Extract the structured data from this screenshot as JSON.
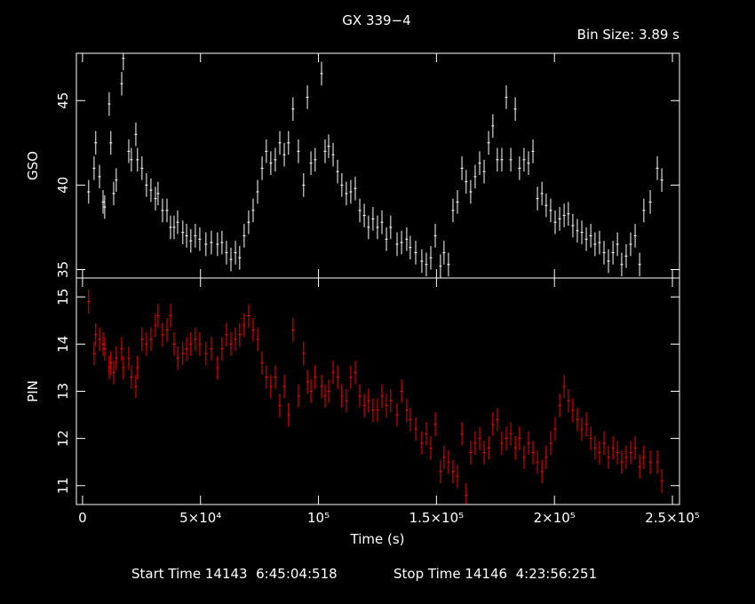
{
  "chart_data": [
    {
      "type": "errorbar",
      "title": "GX 339−4",
      "annotation": "Bin Size: 3.89 s",
      "ylabel": "GSO",
      "xlim": [
        -2600,
        253000
      ],
      "ylim": [
        34.5,
        47.8
      ],
      "yticks": [
        35,
        40,
        45
      ],
      "series": [
        {
          "name": "GSO",
          "color": "#ffffff",
          "yerr": 0.7,
          "x": [
            2600,
            4900,
            5600,
            7200,
            8700,
            9400,
            11300,
            12000,
            13200,
            14300,
            16600,
            17300,
            19600,
            20700,
            22600,
            23300,
            25200,
            27100,
            29000,
            30900,
            32000,
            33900,
            35800,
            37300,
            38800,
            40300,
            42500,
            44100,
            45900,
            47800,
            49700,
            52300,
            54600,
            57200,
            59100,
            61000,
            62900,
            64800,
            66600,
            68500,
            70400,
            72300,
            74200,
            76100,
            77900,
            79800,
            81700,
            83600,
            85500,
            87300,
            89200,
            91500,
            93700,
            95300,
            96800,
            98600,
            101300,
            102800,
            104300,
            106200,
            108100,
            109900,
            111800,
            113700,
            115600,
            117500,
            119400,
            121200,
            123100,
            125000,
            126900,
            128800,
            130600,
            133300,
            135200,
            137400,
            138900,
            141200,
            143800,
            145700,
            147600,
            149500,
            151700,
            153200,
            155100,
            157000,
            158900,
            160800,
            162600,
            164500,
            166400,
            168300,
            170200,
            172100,
            173900,
            175800,
            177700,
            179600,
            181500,
            183400,
            185200,
            187100,
            189000,
            190900,
            192800,
            194700,
            196500,
            198400,
            200300,
            202200,
            204100,
            205900,
            207800,
            209700,
            211600,
            213500,
            215400,
            217200,
            219100,
            221000,
            222900,
            224800,
            226700,
            228500,
            230400,
            232300,
            234200,
            236100,
            237900,
            240600,
            243600,
            245500
          ],
          "values": [
            39.6,
            41,
            42.5,
            40.5,
            39,
            38.7,
            44.8,
            42.5,
            39.5,
            40.3,
            46,
            47.5,
            42,
            41.5,
            43,
            41.5,
            41,
            40,
            39.7,
            39.2,
            39.5,
            38.5,
            38.5,
            37.5,
            37.5,
            37.8,
            37.2,
            37,
            36.7,
            37,
            36.8,
            36.5,
            36.6,
            36.5,
            36.6,
            36,
            35.6,
            36,
            35.7,
            37,
            37.8,
            38.5,
            39.6,
            41,
            42,
            41.3,
            41.5,
            42.5,
            41.8,
            42.5,
            44.5,
            42,
            40,
            45.2,
            41.3,
            41.5,
            46.6,
            42,
            42.3,
            41.8,
            40.8,
            40,
            39.5,
            39.6,
            39.8,
            38.5,
            38.2,
            37.5,
            38,
            37.5,
            37.8,
            36.8,
            37.5,
            36.5,
            36.6,
            36.8,
            36.3,
            36,
            35.5,
            35.3,
            35.7,
            37,
            35.2,
            36,
            35.3,
            38.5,
            39,
            41,
            40.2,
            39.6,
            40.5,
            41.3,
            40.8,
            42.5,
            43.5,
            41.5,
            41.5,
            45.2,
            41.5,
            44.5,
            41,
            41.5,
            41.3,
            42,
            39.2,
            39.5,
            38.8,
            38.5,
            37.8,
            38,
            38.2,
            38.3,
            37.6,
            37.3,
            37.2,
            36.8,
            37,
            36.5,
            36.6,
            36,
            35.5,
            36,
            36.5,
            35.3,
            35.8,
            36.5,
            37,
            35.3,
            38.5,
            39,
            41,
            40.3
          ]
        }
      ]
    },
    {
      "type": "errorbar",
      "ylabel": "PIN",
      "xlabel": "Time (s)",
      "notes": [
        "Start Time 14143  6:45:04:518",
        "Stop Time 14146  4:23:56:251"
      ],
      "xlim": [
        -2600,
        253000
      ],
      "ylim": [
        10.6,
        15.4
      ],
      "yticks": [
        11,
        12,
        13,
        14,
        15
      ],
      "xticks": [
        0,
        {
          "value": 50000,
          "label": "5×10⁴"
        },
        {
          "value": 100000,
          "label": "10⁵"
        },
        {
          "value": 150000,
          "label": "1.5×10⁵"
        },
        {
          "value": 200000,
          "label": "2×10⁵"
        },
        {
          "value": 250000,
          "label": "2.5×10⁵"
        }
      ],
      "series": [
        {
          "name": "PIN",
          "color": "#ff0000",
          "yerr": 0.25,
          "x": [
            2600,
            4900,
            5600,
            7200,
            8700,
            9400,
            11300,
            12000,
            13200,
            14300,
            16600,
            17300,
            19600,
            20700,
            22600,
            23300,
            25200,
            27100,
            29000,
            30900,
            32000,
            33900,
            35800,
            37300,
            38800,
            40300,
            42500,
            44100,
            45900,
            47800,
            49700,
            52300,
            54600,
            57200,
            59100,
            61000,
            62900,
            64800,
            66600,
            68500,
            70400,
            72300,
            74200,
            76100,
            77900,
            79800,
            81700,
            83600,
            85500,
            87300,
            89200,
            91500,
            93700,
            95300,
            96800,
            98600,
            101300,
            102800,
            104300,
            106200,
            108100,
            109900,
            111800,
            113700,
            115600,
            117500,
            119400,
            121200,
            123100,
            125000,
            126900,
            128800,
            130600,
            133300,
            135200,
            137400,
            138900,
            141200,
            143800,
            145700,
            147600,
            149500,
            151700,
            153200,
            155100,
            157000,
            158900,
            160800,
            162600,
            164500,
            166400,
            168300,
            170200,
            172100,
            173900,
            175800,
            177700,
            179600,
            181500,
            183400,
            185200,
            187100,
            189000,
            190900,
            192800,
            194700,
            196500,
            198400,
            200300,
            202200,
            204100,
            205900,
            207800,
            209700,
            211600,
            213500,
            215400,
            217200,
            219100,
            221000,
            222900,
            224800,
            226700,
            228500,
            230400,
            232300,
            234200,
            236100,
            237900,
            240600,
            243600,
            245500
          ],
          "values": [
            14.9,
            13.8,
            14.2,
            14.1,
            14,
            13.9,
            13.5,
            13.6,
            13.4,
            13.7,
            13.9,
            13.5,
            13.7,
            13.3,
            13.1,
            13.5,
            14.1,
            14,
            14.1,
            14.4,
            14.6,
            14.2,
            14.3,
            14.6,
            14,
            13.7,
            13.8,
            13.9,
            14,
            14.1,
            14,
            13.8,
            13.9,
            13.5,
            13.9,
            14.2,
            14,
            14.1,
            14.2,
            14.4,
            14.6,
            14.3,
            14.1,
            13.6,
            13.3,
            13.1,
            13.3,
            12.7,
            13.1,
            12.5,
            14.3,
            12.9,
            13.8,
            13.2,
            13,
            13.3,
            13.1,
            12.9,
            13,
            13.4,
            13.3,
            12.9,
            12.8,
            13.3,
            13.4,
            12.9,
            12.7,
            12.8,
            12.6,
            12.6,
            12.9,
            12.7,
            12.8,
            12.5,
            13,
            12.6,
            12.4,
            12.2,
            11.9,
            12.1,
            11.8,
            12.3,
            11.3,
            11.6,
            11.5,
            11.3,
            11.2,
            12.1,
            10.8,
            11.7,
            11.9,
            12,
            11.7,
            11.8,
            12.3,
            12.4,
            11.9,
            12,
            12.1,
            11.8,
            12,
            11.6,
            11.9,
            11.7,
            11.5,
            11.3,
            11.6,
            11.9,
            12.2,
            12.7,
            13.1,
            12.8,
            12.6,
            12.4,
            12.2,
            12.3,
            12,
            11.8,
            11.7,
            11.9,
            11.6,
            11.8,
            11.7,
            11.5,
            11.6,
            11.7,
            11.8,
            11.4,
            11.6,
            11.5,
            11.5,
            11.1
          ]
        }
      ]
    }
  ]
}
